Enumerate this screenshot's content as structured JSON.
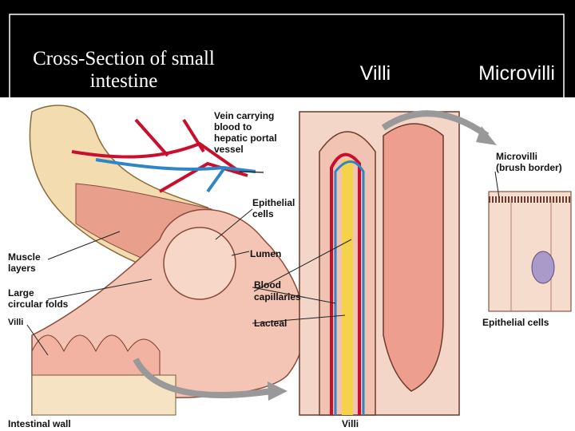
{
  "header": {
    "title": [
      "Cross-Section of small",
      "intestine"
    ],
    "villi": "Villi",
    "microvilli": "Microvilli"
  },
  "figure": {
    "vein": [
      "Vein carrying",
      "blood to",
      "hepatic portal",
      "vessel"
    ],
    "epithelial_cells": [
      "Epithelial",
      "cells"
    ],
    "muscle_layers": [
      "Muscle",
      "layers"
    ],
    "lumen": "Lumen",
    "circular_folds": [
      "Large",
      "circular folds"
    ],
    "blood_capillaries": [
      "Blood",
      "capillaries"
    ],
    "villi_small": "Villi",
    "lacteal": "Lacteal",
    "intestinal_wall": "Intestinal wall",
    "villi_caption": "Villi",
    "microvilli": [
      "Microvilli",
      "(brush border)"
    ],
    "epithelial_cells_caption": "Epithelial cells"
  }
}
